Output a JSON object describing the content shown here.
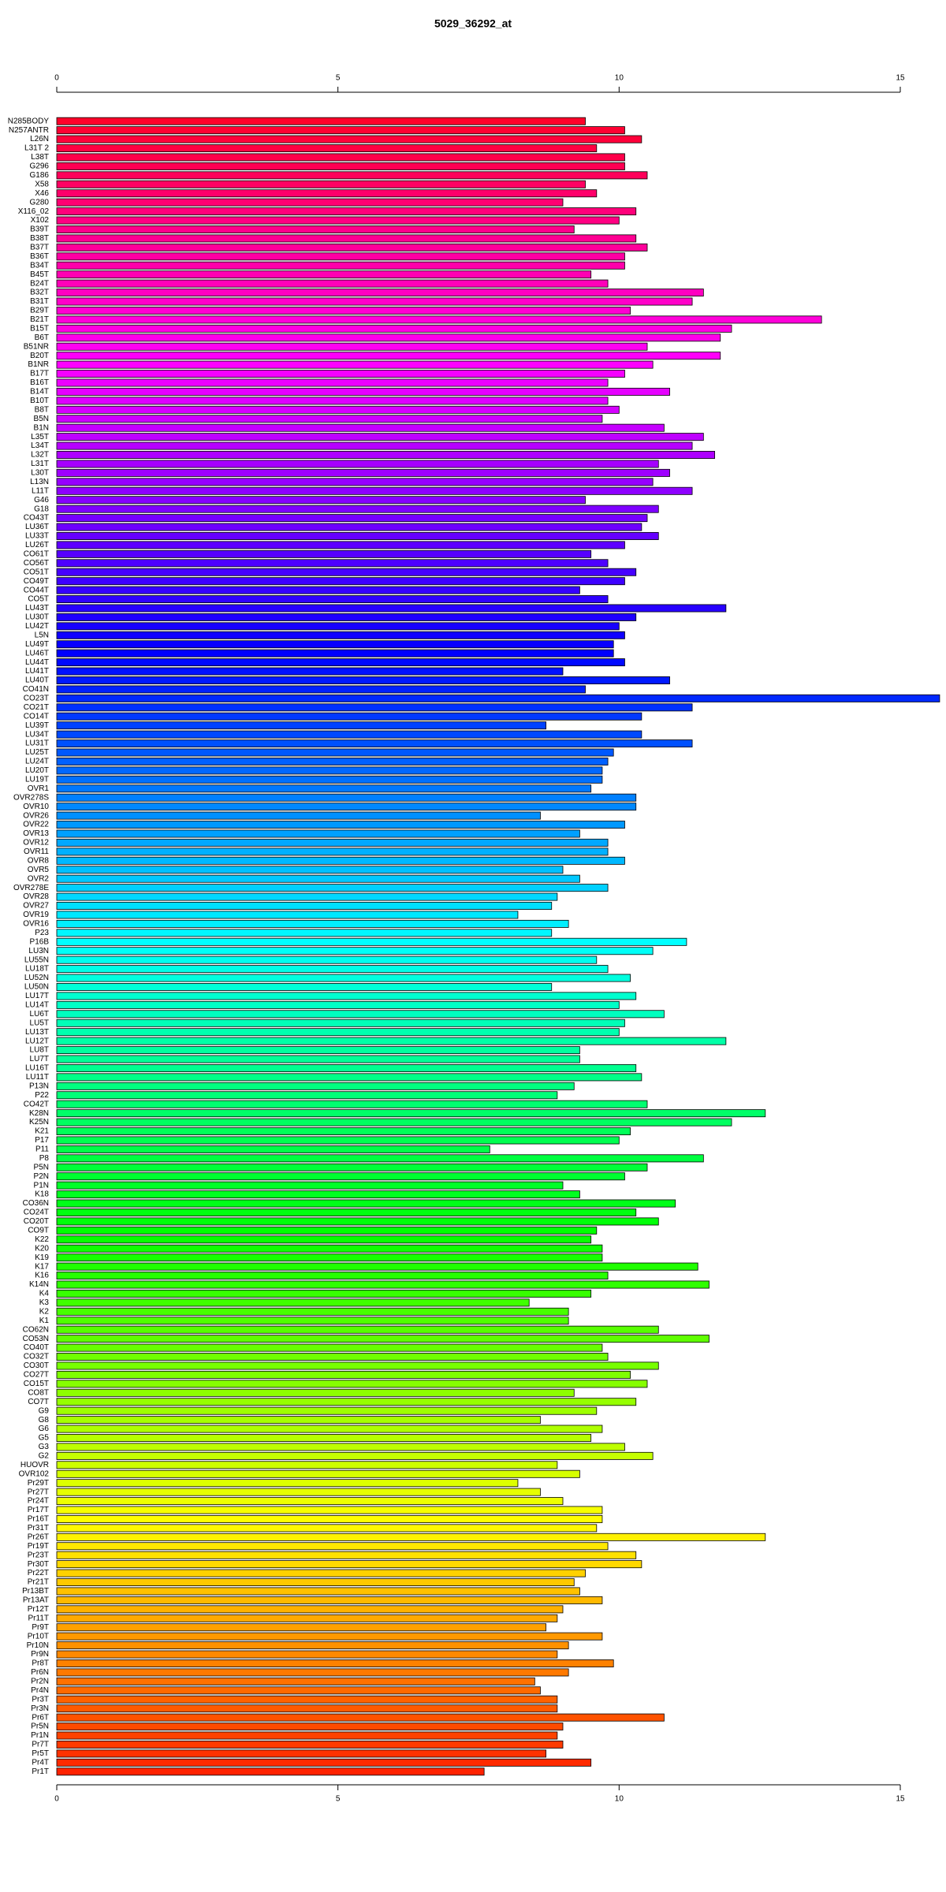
{
  "chart_data": {
    "type": "bar",
    "orientation": "horizontal",
    "title": "5029_36292_at",
    "color": "rainbow",
    "xlim": [
      0,
      15
    ],
    "xticks": [
      0,
      5,
      10,
      15
    ],
    "categories": [
      "N285BODY",
      "N257ANTR",
      "L26N",
      "L31T 2",
      "L38T",
      "G296",
      "G186",
      "X58",
      "X46",
      "G280",
      "X116_02",
      "X102",
      "B39T",
      "B38T",
      "B37T",
      "B36T",
      "B34T",
      "B45T",
      "B24T",
      "B32T",
      "B31T",
      "B29T",
      "B21T",
      "B15T",
      "B6T",
      "B51NR",
      "B20T",
      "B1NR",
      "B17T",
      "B16T",
      "B14T",
      "B10T",
      "B8T",
      "B5N",
      "B1N",
      "L35T",
      "L34T",
      "L32T",
      "L31T",
      "L30T",
      "L13N",
      "L11T",
      "G46",
      "G18",
      "CO43T",
      "LU36T",
      "LU33T",
      "LU26T",
      "CO61T",
      "CO56T",
      "CO51T",
      "CO49T",
      "CO44T",
      "CO5T",
      "LU43T",
      "LU30T",
      "LU42T",
      "L5N",
      "LU49T",
      "LU46T",
      "LU44T",
      "LU41T",
      "LU40T",
      "CO41N",
      "CO23T",
      "CO21T",
      "CO14T",
      "LU39T",
      "LU34T",
      "LU31T",
      "LU25T",
      "LU24T",
      "LU20T",
      "LU19T",
      "OVR1",
      "OVR278S",
      "OVR10",
      "OVR26",
      "OVR22",
      "OVR13",
      "OVR12",
      "OVR11",
      "OVR8",
      "OVR5",
      "OVR2",
      "OVR278E",
      "OVR28",
      "OVR27",
      "OVR19",
      "OVR16",
      "P23",
      "P16B",
      "LU3N",
      "LU55N",
      "LU18T",
      "LU52N",
      "LU50N",
      "LU17T",
      "LU14T",
      "LU6T",
      "LU5T",
      "LU13T",
      "LU12T",
      "LU8T",
      "LU7T",
      "LU16T",
      "LU11T",
      "P13N",
      "P22",
      "CO42T",
      "K28N",
      "K25N",
      "K21",
      "P17",
      "P11",
      "P8",
      "P5N",
      "P2N",
      "P1N",
      "K18",
      "CO36N",
      "CO24T",
      "CO20T",
      "CO9T",
      "K22",
      "K20",
      "K19",
      "K17",
      "K16",
      "K14N",
      "K4",
      "K3",
      "K2",
      "K1",
      "CO62N",
      "CO53N",
      "CO40T",
      "CO32T",
      "CO30T",
      "CO27T",
      "CO15T",
      "CO8T",
      "CO7T",
      "G9",
      "G8",
      "G6",
      "G5",
      "G3",
      "G2",
      "HUOVR",
      "OVR102",
      "Pr29T",
      "Pr27T",
      "Pr24T",
      "Pr17T",
      "Pr16T",
      "Pr31T",
      "Pr26T",
      "Pr19T",
      "Pr23T",
      "Pr30T",
      "Pr22T",
      "Pr21T",
      "Pr13BT",
      "Pr13AT",
      "Pr12T",
      "Pr11T",
      "Pr9T",
      "Pr10T",
      "Pr10N",
      "Pr9N",
      "Pr8T",
      "Pr6N",
      "Pr2N",
      "Pr4N",
      "Pr3T",
      "Pr3N",
      "Pr6T",
      "Pr5N",
      "Pr1N",
      "Pr7T",
      "Pr5T",
      "Pr4T",
      "Pr1T"
    ],
    "values": [
      9.4,
      10.1,
      10.4,
      9.6,
      10.1,
      10.1,
      10.5,
      9.4,
      9.6,
      9.0,
      10.3,
      10.0,
      9.2,
      10.3,
      10.5,
      10.1,
      10.1,
      9.5,
      9.8,
      11.5,
      11.3,
      10.2,
      13.6,
      12.0,
      11.8,
      10.5,
      11.8,
      10.6,
      10.1,
      9.8,
      10.9,
      9.8,
      10.0,
      9.7,
      10.8,
      11.5,
      11.3,
      11.7,
      10.7,
      10.9,
      10.6,
      11.3,
      9.4,
      10.7,
      10.5,
      10.4,
      10.7,
      10.1,
      9.5,
      9.8,
      10.3,
      10.1,
      9.3,
      9.8,
      11.9,
      10.3,
      10.0,
      10.1,
      9.9,
      9.9,
      10.1,
      9.0,
      10.9,
      9.4,
      15.7,
      11.3,
      10.4,
      8.7,
      10.4,
      11.3,
      9.9,
      9.8,
      9.7,
      9.7,
      9.5,
      10.3,
      10.3,
      8.6,
      10.1,
      9.3,
      9.8,
      9.8,
      10.1,
      9.0,
      9.3,
      9.8,
      8.9,
      8.8,
      8.2,
      9.1,
      8.8,
      11.2,
      10.6,
      9.6,
      9.8,
      10.2,
      8.8,
      10.3,
      10.0,
      10.8,
      10.1,
      10.0,
      11.9,
      9.3,
      9.3,
      10.3,
      10.4,
      9.2,
      8.9,
      10.5,
      12.6,
      12.0,
      10.2,
      10.0,
      7.7,
      11.5,
      10.5,
      10.1,
      9.0,
      9.3,
      11.0,
      10.3,
      10.7,
      9.6,
      9.5,
      9.7,
      9.7,
      11.4,
      9.8,
      11.6,
      9.5,
      8.4,
      9.1,
      9.1,
      10.7,
      11.6,
      9.7,
      9.8,
      10.7,
      10.2,
      10.5,
      9.2,
      10.3,
      9.6,
      8.6,
      9.7,
      9.5,
      10.1,
      10.6,
      8.9,
      9.3,
      8.2,
      8.6,
      9.0,
      9.7,
      9.7,
      9.6,
      12.6,
      9.8,
      10.3,
      10.4,
      9.4,
      9.2,
      9.3,
      9.7,
      9.0,
      8.9,
      8.7,
      9.7,
      9.1,
      8.9,
      9.9,
      9.1,
      8.5,
      8.6,
      8.9,
      8.9,
      10.8,
      9.0,
      8.9,
      9.0,
      8.7,
      9.5,
      7.6
    ]
  }
}
